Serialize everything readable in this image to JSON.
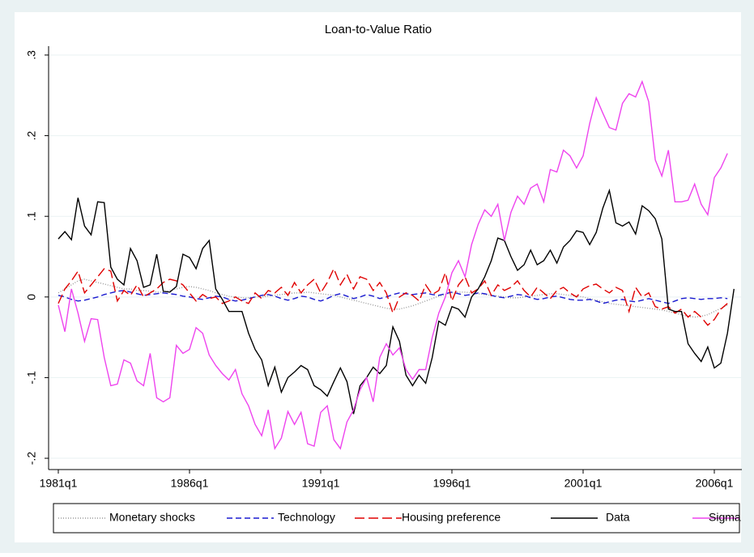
{
  "chart_data": {
    "type": "line",
    "title": "Loan-to-Value Ratio",
    "categories": [
      "1981q1",
      null,
      null,
      null,
      null,
      null,
      null,
      null,
      null,
      null,
      null,
      null,
      null,
      null,
      null,
      null,
      null,
      null,
      null,
      null,
      "1986q1",
      null,
      null,
      null,
      null,
      null,
      null,
      null,
      null,
      null,
      null,
      null,
      null,
      null,
      null,
      null,
      null,
      null,
      null,
      null,
      "1991q1",
      null,
      null,
      null,
      null,
      null,
      null,
      null,
      null,
      null,
      null,
      null,
      null,
      null,
      null,
      null,
      null,
      null,
      null,
      null,
      "1996q1",
      null,
      null,
      null,
      null,
      null,
      null,
      null,
      null,
      null,
      null,
      null,
      null,
      null,
      null,
      null,
      null,
      null,
      null,
      null,
      "2001q1",
      null,
      null,
      null,
      null,
      null,
      null,
      null,
      null,
      null,
      null,
      null,
      null,
      null,
      null,
      null,
      null,
      null,
      null,
      null,
      "2006q1",
      null,
      null,
      null
    ],
    "ylim": [
      -0.214,
      0.311
    ],
    "yticks": [
      {
        "value": -0.2,
        "label": "-.2"
      },
      {
        "value": -0.1,
        "label": "-.1"
      },
      0,
      {
        "value": 0.1,
        "label": ".1"
      },
      {
        "value": 0.2,
        "label": ".2"
      },
      {
        "value": 0.3,
        "label": ".3"
      }
    ],
    "grid": true,
    "legend": "bottom",
    "series": [
      {
        "name": "Monetary shocks",
        "color": "#999999",
        "dash": "1 2",
        "values": [
          0.005,
          0.01,
          0.015,
          0.02,
          0.022,
          0.02,
          0.018,
          0.016,
          0.014,
          0.012,
          0.01,
          0.01,
          0.008,
          0.008,
          0.007,
          0.006,
          0.006,
          0.008,
          0.01,
          0.012,
          0.013,
          0.012,
          0.01,
          0.008,
          0.005,
          0.003,
          0.001,
          0.0,
          -0.001,
          -0.001,
          0.0,
          0.0,
          0.001,
          0.002,
          0.003,
          0.004,
          0.005,
          0.005,
          0.006,
          0.005,
          0.004,
          0.003,
          0.002,
          0.0,
          -0.002,
          -0.004,
          -0.006,
          -0.008,
          -0.01,
          -0.012,
          -0.014,
          -0.015,
          -0.015,
          -0.013,
          -0.011,
          -0.008,
          -0.005,
          -0.002,
          0.001,
          0.003,
          0.005,
          0.006,
          0.006,
          0.005,
          0.004,
          0.003,
          0.002,
          0.001,
          0.0,
          -0.001,
          -0.001,
          0.0,
          0.001,
          0.002,
          0.003,
          0.004,
          0.004,
          0.003,
          0.002,
          0.001,
          0.0,
          -0.002,
          -0.004,
          -0.006,
          -0.008,
          -0.009,
          -0.01,
          -0.011,
          -0.012,
          -0.013,
          -0.014,
          -0.015,
          -0.016,
          -0.018,
          -0.02,
          -0.022,
          -0.024,
          -0.025,
          -0.024,
          -0.022,
          -0.018,
          -0.014,
          -0.01,
          null
        ]
      },
      {
        "name": "Technology",
        "color": "#1a1ad0",
        "dash": "7 4",
        "values": [
          0.002,
          0.0,
          -0.003,
          -0.005,
          -0.004,
          -0.002,
          0.0,
          0.003,
          0.005,
          0.007,
          0.008,
          0.006,
          0.004,
          0.002,
          0.003,
          0.004,
          0.005,
          0.004,
          0.003,
          0.001,
          0.0,
          -0.002,
          -0.003,
          -0.001,
          0.001,
          0.0,
          -0.003,
          -0.005,
          -0.004,
          -0.002,
          0.0,
          0.002,
          0.003,
          0.001,
          -0.002,
          -0.004,
          -0.002,
          0.001,
          0.0,
          -0.003,
          -0.005,
          -0.002,
          0.002,
          0.004,
          0.001,
          -0.002,
          0.0,
          0.003,
          0.001,
          -0.002,
          0.0,
          0.003,
          0.005,
          0.004,
          0.003,
          0.004,
          0.005,
          0.003,
          0.002,
          0.004,
          0.006,
          0.004,
          0.002,
          0.003,
          0.005,
          0.004,
          0.002,
          0.0,
          -0.001,
          0.001,
          0.003,
          0.002,
          -0.001,
          -0.003,
          -0.002,
          0.0,
          0.001,
          -0.001,
          -0.003,
          -0.004,
          -0.004,
          -0.003,
          -0.005,
          -0.008,
          -0.006,
          -0.004,
          -0.003,
          -0.005,
          -0.006,
          -0.004,
          -0.002,
          -0.004,
          -0.006,
          -0.008,
          -0.005,
          -0.002,
          -0.001,
          -0.002,
          -0.003,
          -0.002,
          -0.002,
          -0.001,
          -0.002,
          null
        ]
      },
      {
        "name": "Housing preference",
        "color": "#e00000",
        "dash": "12 5",
        "values": [
          -0.008,
          0.01,
          0.02,
          0.032,
          0.005,
          0.015,
          0.025,
          0.035,
          0.032,
          -0.005,
          0.008,
          0.002,
          0.015,
          0.0,
          0.005,
          0.01,
          0.018,
          0.022,
          0.02,
          0.015,
          0.005,
          -0.005,
          0.003,
          -0.002,
          0.0,
          -0.008,
          -0.005,
          0.0,
          -0.005,
          -0.008,
          0.005,
          -0.002,
          0.008,
          0.005,
          0.012,
          0.002,
          0.018,
          0.005,
          0.015,
          0.022,
          0.005,
          0.018,
          0.035,
          0.015,
          0.028,
          0.01,
          0.025,
          0.022,
          0.008,
          0.018,
          0.005,
          -0.02,
          0.0,
          0.005,
          0.002,
          -0.005,
          0.015,
          0.003,
          0.008,
          0.03,
          -0.005,
          0.015,
          0.025,
          0.005,
          0.01,
          0.02,
          0.002,
          0.015,
          0.008,
          0.012,
          0.02,
          0.008,
          0.0,
          0.012,
          0.005,
          -0.002,
          0.008,
          0.012,
          0.005,
          0.0,
          0.01,
          0.014,
          0.016,
          0.01,
          0.005,
          0.012,
          0.008,
          -0.018,
          0.012,
          0.0,
          0.005,
          -0.012,
          -0.015,
          -0.012,
          -0.02,
          -0.015,
          -0.025,
          -0.018,
          -0.025,
          -0.035,
          -0.028,
          -0.015,
          -0.008,
          null
        ]
      },
      {
        "name": "Data",
        "color": "#000000",
        "dash": "",
        "values": [
          0.072,
          0.081,
          0.071,
          0.123,
          0.088,
          0.077,
          0.118,
          0.117,
          0.037,
          0.022,
          0.015,
          0.06,
          0.045,
          0.012,
          0.015,
          0.053,
          0.007,
          0.006,
          0.013,
          0.053,
          0.049,
          0.035,
          0.06,
          0.07,
          0.01,
          -0.003,
          -0.018,
          -0.018,
          -0.018,
          -0.045,
          -0.065,
          -0.078,
          -0.11,
          -0.087,
          -0.118,
          -0.1,
          -0.093,
          -0.085,
          -0.09,
          -0.11,
          -0.115,
          -0.123,
          -0.105,
          -0.088,
          -0.105,
          -0.145,
          -0.11,
          -0.1,
          -0.087,
          -0.095,
          -0.085,
          -0.037,
          -0.055,
          -0.097,
          -0.11,
          -0.097,
          -0.107,
          -0.075,
          -0.03,
          -0.035,
          -0.012,
          -0.015,
          -0.025,
          0.0,
          0.01,
          0.025,
          0.045,
          0.073,
          0.07,
          0.05,
          0.033,
          0.04,
          0.058,
          0.04,
          0.045,
          0.058,
          0.042,
          0.062,
          0.07,
          0.082,
          0.08,
          0.065,
          0.08,
          0.11,
          0.132,
          0.092,
          0.088,
          0.093,
          0.078,
          0.113,
          0.107,
          0.097,
          0.072,
          -0.015,
          -0.018,
          -0.018,
          -0.058,
          -0.07,
          -0.08,
          -0.062,
          -0.088,
          -0.082,
          -0.045,
          0.01
        ]
      },
      {
        "name": "Sigma",
        "color": "#ee44ee",
        "dash": "",
        "values": [
          -0.01,
          -0.043,
          0.01,
          -0.02,
          -0.055,
          -0.027,
          -0.028,
          -0.075,
          -0.11,
          -0.108,
          -0.078,
          -0.082,
          -0.104,
          -0.11,
          -0.07,
          -0.125,
          -0.13,
          -0.125,
          -0.06,
          -0.07,
          -0.065,
          -0.038,
          -0.045,
          -0.072,
          -0.085,
          -0.095,
          -0.103,
          -0.09,
          -0.12,
          -0.135,
          -0.158,
          -0.172,
          -0.14,
          -0.188,
          -0.175,
          -0.142,
          -0.158,
          -0.143,
          -0.182,
          -0.185,
          -0.143,
          -0.135,
          -0.177,
          -0.188,
          -0.155,
          -0.14,
          -0.115,
          -0.1,
          -0.13,
          -0.075,
          -0.058,
          -0.072,
          -0.063,
          -0.09,
          -0.102,
          -0.09,
          -0.09,
          -0.05,
          -0.02,
          0.0,
          0.03,
          0.045,
          0.025,
          0.065,
          0.09,
          0.108,
          0.1,
          0.115,
          0.07,
          0.105,
          0.125,
          0.115,
          0.135,
          0.14,
          0.118,
          0.158,
          0.155,
          0.182,
          0.175,
          0.16,
          0.175,
          0.215,
          0.247,
          0.228,
          0.21,
          0.207,
          0.24,
          0.252,
          0.248,
          0.267,
          0.242,
          0.17,
          0.15,
          0.182,
          0.118,
          0.118,
          0.12,
          0.14,
          0.115,
          0.102,
          0.148,
          0.16,
          0.178,
          null
        ]
      }
    ]
  }
}
